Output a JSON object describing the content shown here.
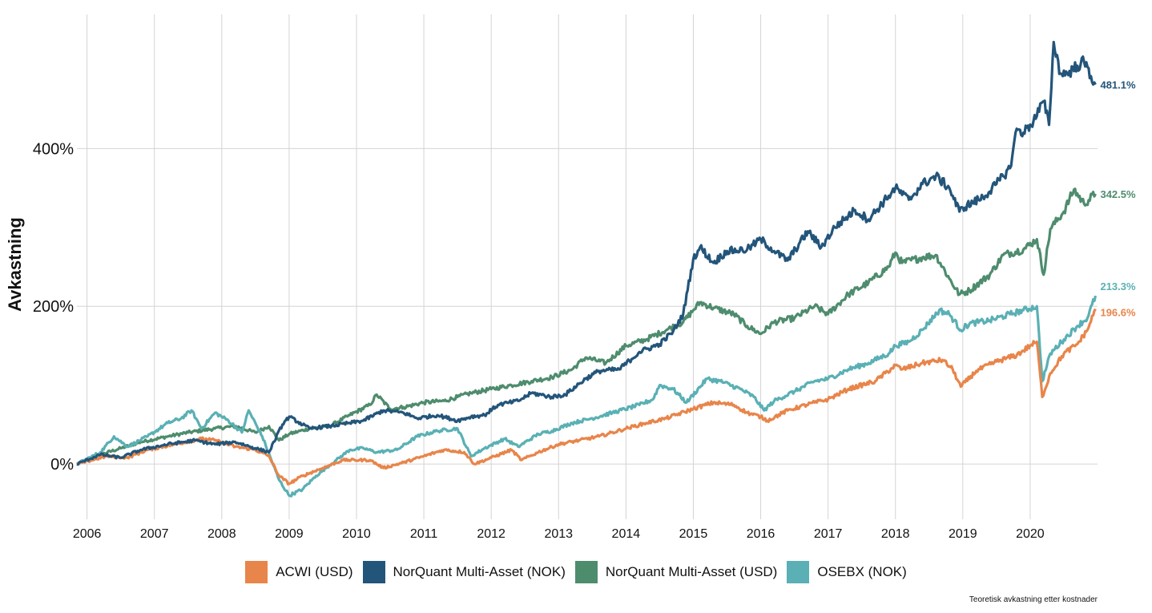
{
  "chart_data": {
    "type": "line",
    "title": "",
    "xlabel": "",
    "ylabel": "Avkastning",
    "xlim": [
      2005.85,
      2021.0
    ],
    "ylim": [
      -70,
      570
    ],
    "x_ticks": [
      "2006",
      "2007",
      "2008",
      "2009",
      "2010",
      "2011",
      "2012",
      "2013",
      "2014",
      "2015",
      "2016",
      "2017",
      "2018",
      "2019",
      "2020"
    ],
    "y_ticks": [
      {
        "value": 0,
        "label": "0%"
      },
      {
        "value": 200,
        "label": "200%"
      },
      {
        "value": 400,
        "label": "400%"
      }
    ],
    "grid": true,
    "legend_position": "bottom",
    "caption": "Teoretisk avkastning etter kostnader",
    "series": [
      {
        "name": "ACWI (USD)",
        "color": "#E8854A",
        "end_label": "196.6%",
        "points": [
          [
            2005.85,
            0
          ],
          [
            2006.3,
            10
          ],
          [
            2006.6,
            8
          ],
          [
            2006.9,
            18
          ],
          [
            2007.3,
            25
          ],
          [
            2007.7,
            32
          ],
          [
            2007.9,
            30
          ],
          [
            2008.2,
            22
          ],
          [
            2008.5,
            18
          ],
          [
            2008.7,
            10
          ],
          [
            2008.85,
            -15
          ],
          [
            2009.0,
            -25
          ],
          [
            2009.2,
            -15
          ],
          [
            2009.5,
            -5
          ],
          [
            2009.8,
            5
          ],
          [
            2010.2,
            5
          ],
          [
            2010.4,
            -5
          ],
          [
            2010.7,
            2
          ],
          [
            2011.0,
            10
          ],
          [
            2011.3,
            18
          ],
          [
            2011.6,
            15
          ],
          [
            2011.75,
            0
          ],
          [
            2012.0,
            8
          ],
          [
            2012.3,
            18
          ],
          [
            2012.45,
            5
          ],
          [
            2012.7,
            15
          ],
          [
            2013.0,
            25
          ],
          [
            2013.3,
            30
          ],
          [
            2013.6,
            35
          ],
          [
            2014.0,
            45
          ],
          [
            2014.3,
            52
          ],
          [
            2014.6,
            58
          ],
          [
            2015.0,
            70
          ],
          [
            2015.3,
            78
          ],
          [
            2015.6,
            75
          ],
          [
            2015.8,
            65
          ],
          [
            2016.0,
            60
          ],
          [
            2016.1,
            55
          ],
          [
            2016.4,
            68
          ],
          [
            2016.8,
            78
          ],
          [
            2017.0,
            82
          ],
          [
            2017.3,
            95
          ],
          [
            2017.7,
            105
          ],
          [
            2018.0,
            125
          ],
          [
            2018.1,
            120
          ],
          [
            2018.4,
            128
          ],
          [
            2018.7,
            132
          ],
          [
            2018.85,
            120
          ],
          [
            2018.97,
            98
          ],
          [
            2019.2,
            118
          ],
          [
            2019.5,
            130
          ],
          [
            2019.8,
            138
          ],
          [
            2020.0,
            150
          ],
          [
            2020.1,
            155
          ],
          [
            2020.18,
            85
          ],
          [
            2020.3,
            115
          ],
          [
            2020.5,
            140
          ],
          [
            2020.7,
            152
          ],
          [
            2020.85,
            170
          ],
          [
            2020.97,
            196.6
          ]
        ]
      },
      {
        "name": "NorQuant Multi-Asset (NOK)",
        "color": "#23557A",
        "end_label": "481.1%",
        "points": [
          [
            2005.85,
            0
          ],
          [
            2006.2,
            12
          ],
          [
            2006.5,
            8
          ],
          [
            2006.8,
            18
          ],
          [
            2007.2,
            25
          ],
          [
            2007.6,
            30
          ],
          [
            2007.9,
            25
          ],
          [
            2008.2,
            28
          ],
          [
            2008.5,
            20
          ],
          [
            2008.7,
            15
          ],
          [
            2008.9,
            50
          ],
          [
            2009.0,
            60
          ],
          [
            2009.3,
            45
          ],
          [
            2009.6,
            48
          ],
          [
            2009.9,
            52
          ],
          [
            2010.1,
            55
          ],
          [
            2010.4,
            68
          ],
          [
            2010.7,
            65
          ],
          [
            2010.9,
            58
          ],
          [
            2011.2,
            62
          ],
          [
            2011.5,
            55
          ],
          [
            2011.7,
            60
          ],
          [
            2011.9,
            62
          ],
          [
            2012.1,
            75
          ],
          [
            2012.4,
            80
          ],
          [
            2012.6,
            90
          ],
          [
            2012.9,
            85
          ],
          [
            2013.1,
            88
          ],
          [
            2013.4,
            108
          ],
          [
            2013.6,
            118
          ],
          [
            2013.9,
            120
          ],
          [
            2014.2,
            142
          ],
          [
            2014.5,
            152
          ],
          [
            2014.7,
            168
          ],
          [
            2014.85,
            190
          ],
          [
            2015.0,
            260
          ],
          [
            2015.1,
            275
          ],
          [
            2015.3,
            255
          ],
          [
            2015.5,
            270
          ],
          [
            2015.8,
            272
          ],
          [
            2016.0,
            285
          ],
          [
            2016.2,
            270
          ],
          [
            2016.4,
            258
          ],
          [
            2016.7,
            295
          ],
          [
            2016.9,
            275
          ],
          [
            2017.1,
            300
          ],
          [
            2017.4,
            322
          ],
          [
            2017.6,
            310
          ],
          [
            2017.9,
            340
          ],
          [
            2018.0,
            350
          ],
          [
            2018.2,
            335
          ],
          [
            2018.4,
            355
          ],
          [
            2018.6,
            365
          ],
          [
            2018.8,
            350
          ],
          [
            2018.95,
            320
          ],
          [
            2019.0,
            325
          ],
          [
            2019.3,
            338
          ],
          [
            2019.5,
            355
          ],
          [
            2019.7,
            375
          ],
          [
            2019.8,
            425
          ],
          [
            2019.9,
            420
          ],
          [
            2020.05,
            435
          ],
          [
            2020.2,
            460
          ],
          [
            2020.28,
            430
          ],
          [
            2020.35,
            535
          ],
          [
            2020.45,
            495
          ],
          [
            2020.55,
            495
          ],
          [
            2020.7,
            505
          ],
          [
            2020.8,
            510
          ],
          [
            2020.97,
            481.1
          ]
        ]
      },
      {
        "name": "NorQuant Multi-Asset (USD)",
        "color": "#4E8C6E",
        "end_label": "342.5%",
        "points": [
          [
            2005.85,
            0
          ],
          [
            2006.2,
            12
          ],
          [
            2006.5,
            20
          ],
          [
            2006.8,
            28
          ],
          [
            2007.2,
            35
          ],
          [
            2007.5,
            40
          ],
          [
            2007.9,
            45
          ],
          [
            2008.2,
            48
          ],
          [
            2008.5,
            40
          ],
          [
            2008.7,
            48
          ],
          [
            2008.85,
            30
          ],
          [
            2009.0,
            38
          ],
          [
            2009.3,
            45
          ],
          [
            2009.6,
            48
          ],
          [
            2009.9,
            62
          ],
          [
            2010.2,
            75
          ],
          [
            2010.3,
            88
          ],
          [
            2010.5,
            70
          ],
          [
            2010.7,
            72
          ],
          [
            2011.0,
            78
          ],
          [
            2011.3,
            80
          ],
          [
            2011.5,
            85
          ],
          [
            2011.7,
            90
          ],
          [
            2012.0,
            95
          ],
          [
            2012.3,
            100
          ],
          [
            2012.6,
            105
          ],
          [
            2012.9,
            110
          ],
          [
            2013.2,
            120
          ],
          [
            2013.4,
            135
          ],
          [
            2013.7,
            128
          ],
          [
            2014.0,
            150
          ],
          [
            2014.3,
            158
          ],
          [
            2014.6,
            170
          ],
          [
            2014.85,
            180
          ],
          [
            2015.0,
            195
          ],
          [
            2015.1,
            205
          ],
          [
            2015.3,
            198
          ],
          [
            2015.6,
            190
          ],
          [
            2015.8,
            175
          ],
          [
            2016.0,
            165
          ],
          [
            2016.2,
            180
          ],
          [
            2016.5,
            185
          ],
          [
            2016.8,
            200
          ],
          [
            2017.0,
            190
          ],
          [
            2017.3,
            215
          ],
          [
            2017.6,
            230
          ],
          [
            2017.9,
            250
          ],
          [
            2018.0,
            268
          ],
          [
            2018.1,
            255
          ],
          [
            2018.4,
            262
          ],
          [
            2018.6,
            265
          ],
          [
            2018.8,
            235
          ],
          [
            2018.95,
            215
          ],
          [
            2019.1,
            220
          ],
          [
            2019.4,
            240
          ],
          [
            2019.6,
            265
          ],
          [
            2019.9,
            272
          ],
          [
            2020.1,
            285
          ],
          [
            2020.2,
            240
          ],
          [
            2020.3,
            298
          ],
          [
            2020.5,
            320
          ],
          [
            2020.65,
            348
          ],
          [
            2020.8,
            330
          ],
          [
            2020.97,
            342.5
          ]
        ]
      },
      {
        "name": "OSEBX (NOK)",
        "color": "#5AB0B4",
        "end_label": "213.3%",
        "points": [
          [
            2005.85,
            0
          ],
          [
            2006.2,
            15
          ],
          [
            2006.4,
            35
          ],
          [
            2006.6,
            22
          ],
          [
            2006.9,
            35
          ],
          [
            2007.2,
            52
          ],
          [
            2007.4,
            58
          ],
          [
            2007.55,
            68
          ],
          [
            2007.7,
            45
          ],
          [
            2007.9,
            65
          ],
          [
            2008.1,
            55
          ],
          [
            2008.3,
            40
          ],
          [
            2008.4,
            68
          ],
          [
            2008.6,
            35
          ],
          [
            2008.85,
            -20
          ],
          [
            2009.0,
            -40
          ],
          [
            2009.2,
            -32
          ],
          [
            2009.4,
            -15
          ],
          [
            2009.7,
            5
          ],
          [
            2009.9,
            18
          ],
          [
            2010.1,
            20
          ],
          [
            2010.3,
            15
          ],
          [
            2010.6,
            18
          ],
          [
            2010.9,
            35
          ],
          [
            2011.2,
            42
          ],
          [
            2011.5,
            45
          ],
          [
            2011.7,
            10
          ],
          [
            2011.9,
            20
          ],
          [
            2012.2,
            32
          ],
          [
            2012.4,
            22
          ],
          [
            2012.7,
            38
          ],
          [
            2012.9,
            42
          ],
          [
            2013.2,
            52
          ],
          [
            2013.5,
            58
          ],
          [
            2013.8,
            65
          ],
          [
            2014.2,
            75
          ],
          [
            2014.4,
            82
          ],
          [
            2014.5,
            100
          ],
          [
            2014.7,
            95
          ],
          [
            2014.9,
            78
          ],
          [
            2015.2,
            108
          ],
          [
            2015.4,
            105
          ],
          [
            2015.7,
            95
          ],
          [
            2015.9,
            85
          ],
          [
            2016.05,
            68
          ],
          [
            2016.2,
            80
          ],
          [
            2016.5,
            92
          ],
          [
            2016.8,
            105
          ],
          [
            2017.0,
            108
          ],
          [
            2017.3,
            120
          ],
          [
            2017.6,
            128
          ],
          [
            2017.9,
            140
          ],
          [
            2018.0,
            150
          ],
          [
            2018.2,
            155
          ],
          [
            2018.4,
            170
          ],
          [
            2018.65,
            195
          ],
          [
            2018.8,
            190
          ],
          [
            2018.97,
            170
          ],
          [
            2019.1,
            178
          ],
          [
            2019.4,
            182
          ],
          [
            2019.7,
            190
          ],
          [
            2019.9,
            195
          ],
          [
            2020.1,
            200
          ],
          [
            2020.18,
            105
          ],
          [
            2020.3,
            140
          ],
          [
            2020.5,
            158
          ],
          [
            2020.7,
            175
          ],
          [
            2020.85,
            185
          ],
          [
            2020.97,
            213.3
          ]
        ]
      }
    ]
  }
}
